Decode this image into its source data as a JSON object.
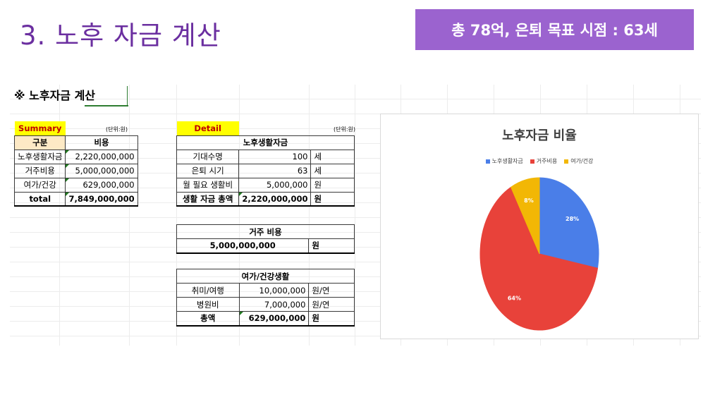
{
  "slide": {
    "title": "3. 노후 자금 계산",
    "banner": "총 78억, 은퇴 목표 시점 : 63세"
  },
  "section_title": "※ 노후자금 계산",
  "summary": {
    "label": "Summary",
    "unit": "(단위:원)",
    "headers": [
      "구분",
      "비용"
    ],
    "rows": [
      {
        "name": "노후생활자금",
        "value": "2,220,000,000"
      },
      {
        "name": "거주비용",
        "value": "5,000,000,000"
      },
      {
        "name": "여가/건강",
        "value": "629,000,000"
      },
      {
        "name": "total",
        "value": "7,849,000,000"
      }
    ]
  },
  "detail": {
    "label": "Detail",
    "unit": "(단위:원)",
    "living": {
      "header": "노후생활자금",
      "rows": [
        {
          "name": "기대수명",
          "value": "100",
          "unit": "세"
        },
        {
          "name": "은퇴 시기",
          "value": "63",
          "unit": "세"
        },
        {
          "name": "월 필요 생활비",
          "value": "5,000,000",
          "unit": "원"
        },
        {
          "name": "생활 자금 총액",
          "value": "2,220,000,000",
          "unit": "원"
        }
      ]
    },
    "housing": {
      "header": "거주 비용",
      "value": "5,000,000,000",
      "unit": "원"
    },
    "leisure": {
      "header": "여가/건강생활",
      "rows": [
        {
          "name": "취미/여행",
          "value": "10,000,000",
          "unit": "원/연"
        },
        {
          "name": "병원비",
          "value": "7,000,000",
          "unit": "원/연"
        },
        {
          "name": "총액",
          "value": "629,000,000",
          "unit": "원"
        }
      ]
    }
  },
  "chart_data": {
    "type": "pie",
    "title": "노후자금 비율",
    "legend_position": "top",
    "series": [
      {
        "name": "노후생활자금",
        "value": 28,
        "label": "28%",
        "color": "#4a7ee8"
      },
      {
        "name": "거주비용",
        "value": 64,
        "label": "64%",
        "color": "#e8423a"
      },
      {
        "name": "여가/건강",
        "value": 8,
        "label": "8%",
        "color": "#f2b705"
      }
    ]
  }
}
